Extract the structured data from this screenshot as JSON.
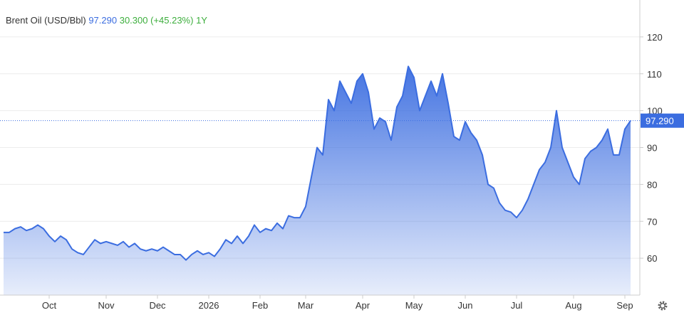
{
  "chart_data": {
    "type": "area",
    "title": "Brent Oil (USD/Bbl)",
    "price": "97.290",
    "change": "30.300",
    "change_pct": "(+45.23%)",
    "period": "1Y",
    "categories": [
      null,
      null,
      null,
      null,
      null,
      null,
      null,
      null,
      "Oct",
      null,
      null,
      null,
      null,
      null,
      null,
      null,
      null,
      null,
      "Nov",
      null,
      null,
      null,
      null,
      null,
      null,
      null,
      null,
      "Dec",
      null,
      null,
      null,
      null,
      null,
      null,
      null,
      null,
      "2026",
      null,
      null,
      null,
      null,
      null,
      null,
      null,
      null,
      "Feb",
      null,
      null,
      null,
      null,
      null,
      null,
      null,
      "Mar",
      null,
      null,
      null,
      null,
      null,
      null,
      null,
      null,
      null,
      "Apr",
      null,
      null,
      null,
      null,
      null,
      null,
      null,
      null,
      "May",
      null,
      null,
      null,
      null,
      null,
      null,
      null,
      null,
      "Jun",
      null,
      null,
      null,
      null,
      null,
      null,
      null,
      null,
      "Jul",
      null,
      null,
      null,
      null,
      null,
      null,
      null,
      null,
      null,
      "Aug",
      null,
      null,
      null,
      null,
      null,
      null,
      null,
      null,
      "Sep",
      null
    ],
    "values": [
      67,
      67,
      68,
      68.5,
      67.5,
      68,
      69,
      68,
      66,
      64.5,
      66,
      65,
      62.5,
      61.5,
      61,
      63,
      65,
      64,
      64.5,
      64,
      63.5,
      64.5,
      63,
      64,
      62.5,
      62,
      62.5,
      62,
      63,
      62,
      61,
      61,
      59.5,
      61,
      62,
      61,
      61.5,
      60.5,
      62.5,
      65,
      64,
      66,
      64,
      66,
      69,
      67,
      68,
      67.5,
      69.5,
      68,
      71.5,
      71,
      71,
      74,
      82,
      90,
      88,
      103,
      100,
      108,
      105,
      102,
      108,
      110,
      105,
      95,
      98,
      97,
      92,
      101,
      104,
      112,
      109,
      100,
      104,
      108,
      104,
      110,
      102,
      93,
      92,
      97,
      94,
      92,
      88,
      80,
      79,
      75,
      73,
      72.5,
      71,
      73,
      76,
      80,
      84,
      86,
      90,
      100,
      90,
      86,
      82,
      80,
      87,
      89,
      90,
      92,
      95,
      88,
      88,
      95,
      97.29
    ],
    "color": "#3b6de0",
    "ylim": [
      50,
      130
    ],
    "yticks": [
      60,
      70,
      80,
      90,
      100,
      110,
      120
    ],
    "grid": true
  }
}
